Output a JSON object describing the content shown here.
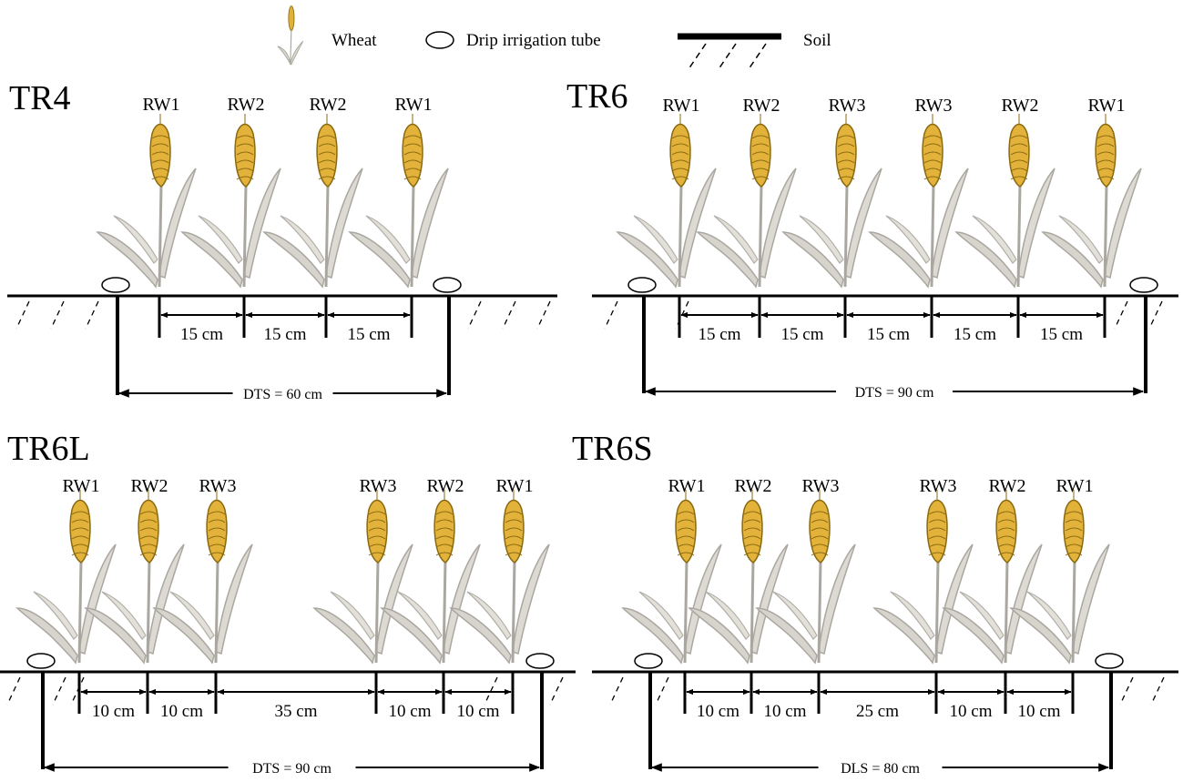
{
  "legend": {
    "wheat": "Wheat",
    "drip": "Drip irrigation tube",
    "soil": "Soil"
  },
  "panels": [
    {
      "id": "tr4",
      "label": "TR4",
      "rows": [
        "RW1",
        "RW2",
        "RW2",
        "RW1"
      ],
      "spacings": [
        "15 cm",
        "15 cm",
        "15 cm"
      ],
      "total": "DTS = 60 cm"
    },
    {
      "id": "tr6",
      "label": "TR6",
      "rows": [
        "RW1",
        "RW2",
        "RW3",
        "RW3",
        "RW2",
        "RW1"
      ],
      "spacings": [
        "15 cm",
        "15 cm",
        "15 cm",
        "15 cm",
        "15 cm"
      ],
      "total": "DTS = 90 cm"
    },
    {
      "id": "tr6l",
      "label": "TR6L",
      "rows": [
        "RW1",
        "RW2",
        "RW3",
        "RW3",
        "RW2",
        "RW1"
      ],
      "spacings": [
        "10 cm",
        "10 cm",
        "35 cm",
        "10 cm",
        "10 cm"
      ],
      "total": "DTS = 90 cm"
    },
    {
      "id": "tr6s",
      "label": "TR6S",
      "rows": [
        "RW1",
        "RW2",
        "RW3",
        "RW3",
        "RW2",
        "RW1"
      ],
      "spacings": [
        "10 cm",
        "10 cm",
        "25 cm",
        "10 cm",
        "10 cm"
      ],
      "total": "DLS = 80 cm"
    }
  ]
}
